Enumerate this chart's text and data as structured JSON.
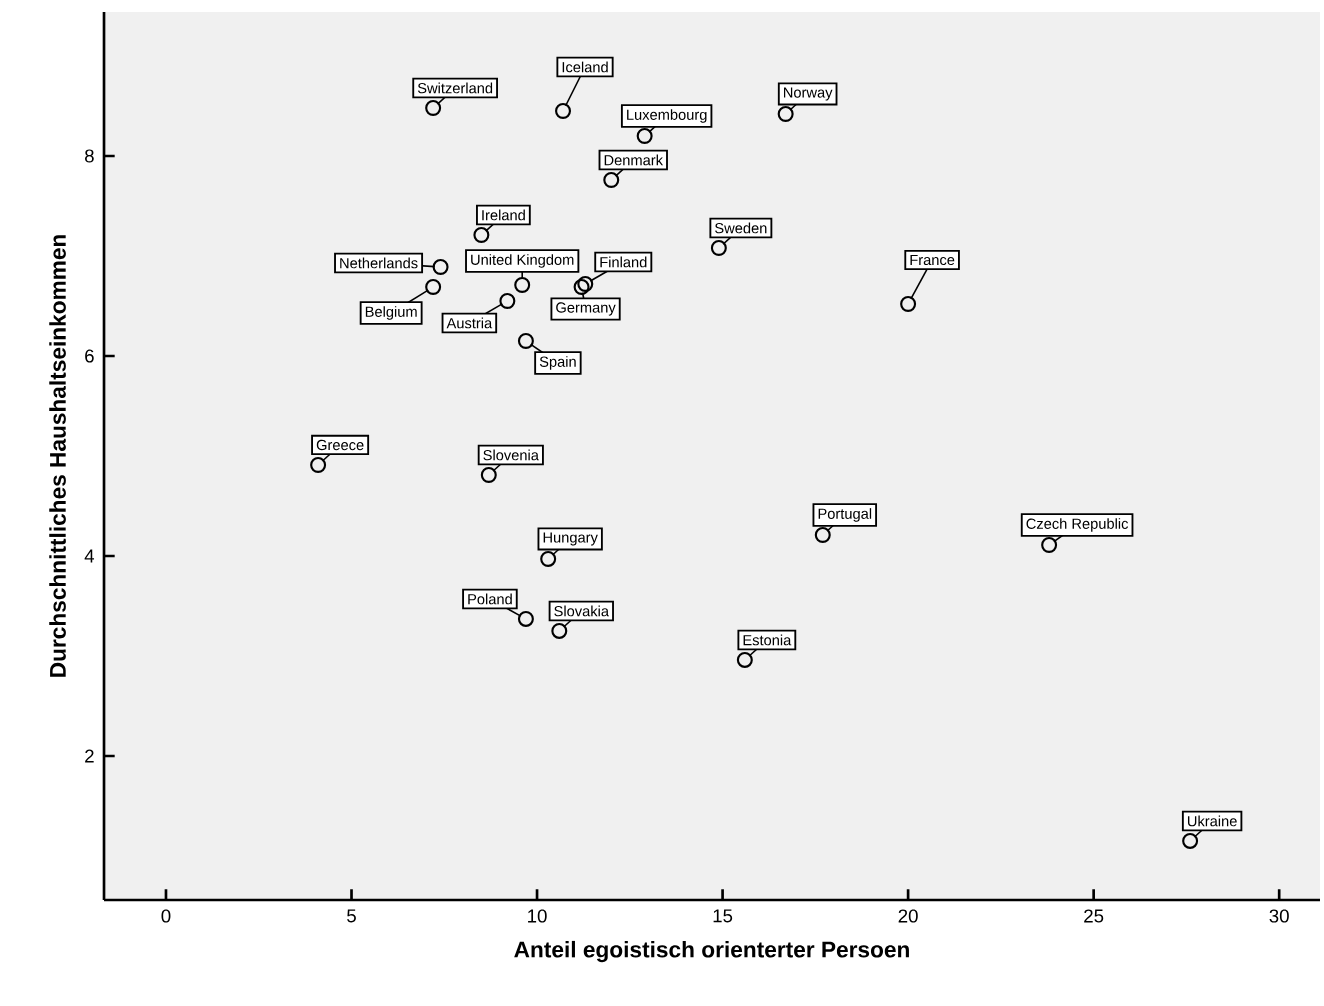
{
  "chart_data": {
    "type": "scatter",
    "xlabel": "Anteil egoistisch orienterter Persoen",
    "ylabel": "Durchschnittliches Haushaltseinkommen",
    "xlim": [
      -1.67,
      31.1
    ],
    "ylim": [
      0.56,
      9.44
    ],
    "xticks": [
      0,
      5,
      10,
      15,
      20,
      25,
      30
    ],
    "yticks": [
      2,
      4,
      6,
      8
    ],
    "grid": false,
    "marker": "circle",
    "series": [
      {
        "color": "#000000",
        "x": [
          7.2,
          10.7,
          12.9,
          12.0,
          8.5,
          7.4,
          7.2,
          9.6,
          9.2,
          11.3,
          11.2,
          9.7,
          4.1,
          8.7,
          16.7,
          14.9,
          20.0,
          10.3,
          9.7,
          10.6,
          17.7,
          23.8,
          15.6,
          27.6
        ],
        "values": [
          8.48,
          8.45,
          8.2,
          7.76,
          7.21,
          6.89,
          6.69,
          6.71,
          6.55,
          6.72,
          6.69,
          6.15,
          4.91,
          4.81,
          8.42,
          7.08,
          6.52,
          3.97,
          3.37,
          3.25,
          4.21,
          4.11,
          2.96,
          1.15
        ]
      }
    ],
    "annotations": [
      {
        "text": "Switzerland",
        "x": 7.2,
        "y": 8.48
      },
      {
        "text": "Iceland",
        "x": 10.7,
        "y": 8.45
      },
      {
        "text": "Luxembourg",
        "x": 12.9,
        "y": 8.2
      },
      {
        "text": "Denmark",
        "x": 12.0,
        "y": 7.76
      },
      {
        "text": "Ireland",
        "x": 8.5,
        "y": 7.21
      },
      {
        "text": "Netherlands",
        "x": 7.4,
        "y": 6.89
      },
      {
        "text": "Belgium",
        "x": 7.2,
        "y": 6.69
      },
      {
        "text": "United Kingdom",
        "x": 9.6,
        "y": 6.71
      },
      {
        "text": "Austria",
        "x": 9.2,
        "y": 6.55
      },
      {
        "text": "Finland",
        "x": 11.3,
        "y": 6.72
      },
      {
        "text": "Germany",
        "x": 11.2,
        "y": 6.69
      },
      {
        "text": "Spain",
        "x": 9.7,
        "y": 6.15
      },
      {
        "text": "Greece",
        "x": 4.1,
        "y": 4.91
      },
      {
        "text": "Slovenia",
        "x": 8.7,
        "y": 4.81
      },
      {
        "text": "Norway",
        "x": 16.7,
        "y": 8.42
      },
      {
        "text": "Sweden",
        "x": 14.9,
        "y": 7.08
      },
      {
        "text": "France",
        "x": 20.0,
        "y": 6.52
      },
      {
        "text": "Hungary",
        "x": 10.3,
        "y": 3.97
      },
      {
        "text": "Poland",
        "x": 9.7,
        "y": 3.37
      },
      {
        "text": "Slovakia",
        "x": 10.6,
        "y": 3.25
      },
      {
        "text": "Portugal",
        "x": 17.7,
        "y": 4.21
      },
      {
        "text": "Czech Republic",
        "x": 23.8,
        "y": 4.11
      },
      {
        "text": "Estonia",
        "x": 15.6,
        "y": 2.96
      },
      {
        "text": "Ukraine",
        "x": 27.6,
        "y": 1.15
      }
    ]
  }
}
